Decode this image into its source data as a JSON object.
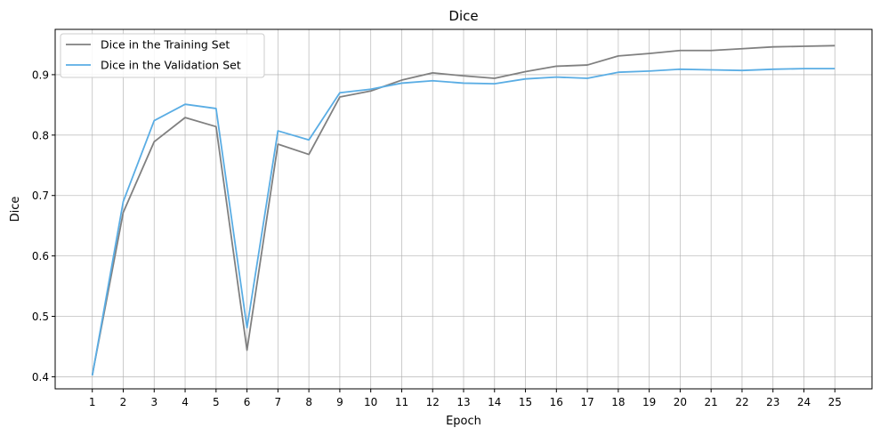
{
  "chart_data": {
    "type": "line",
    "title": "Dice",
    "xlabel": "Epoch",
    "ylabel": "Dice",
    "x": [
      1,
      2,
      3,
      4,
      5,
      6,
      7,
      8,
      9,
      10,
      11,
      12,
      13,
      14,
      15,
      16,
      17,
      18,
      19,
      20,
      21,
      22,
      23,
      24,
      25
    ],
    "xlim": [
      -0.2,
      26.2
    ],
    "ylim": [
      0.38,
      0.975
    ],
    "yticks": [
      0.4,
      0.5,
      0.6,
      0.7,
      0.8,
      0.9
    ],
    "grid": true,
    "legend_position": "top-left",
    "series": [
      {
        "name": "Dice in the Training Set",
        "color": "#808080",
        "values": [
          0.403,
          0.672,
          0.789,
          0.829,
          0.814,
          0.444,
          0.785,
          0.768,
          0.863,
          0.873,
          0.891,
          0.903,
          0.898,
          0.894,
          0.905,
          0.914,
          0.916,
          0.931,
          0.935,
          0.94,
          0.94,
          0.943,
          0.946,
          0.947,
          0.948
        ]
      },
      {
        "name": "Dice in the Validation Set",
        "color": "#5aade4",
        "values": [
          0.402,
          0.69,
          0.824,
          0.851,
          0.844,
          0.481,
          0.807,
          0.792,
          0.87,
          0.876,
          0.886,
          0.89,
          0.886,
          0.885,
          0.893,
          0.896,
          0.894,
          0.904,
          0.906,
          0.909,
          0.908,
          0.907,
          0.909,
          0.91,
          0.91
        ]
      }
    ]
  }
}
